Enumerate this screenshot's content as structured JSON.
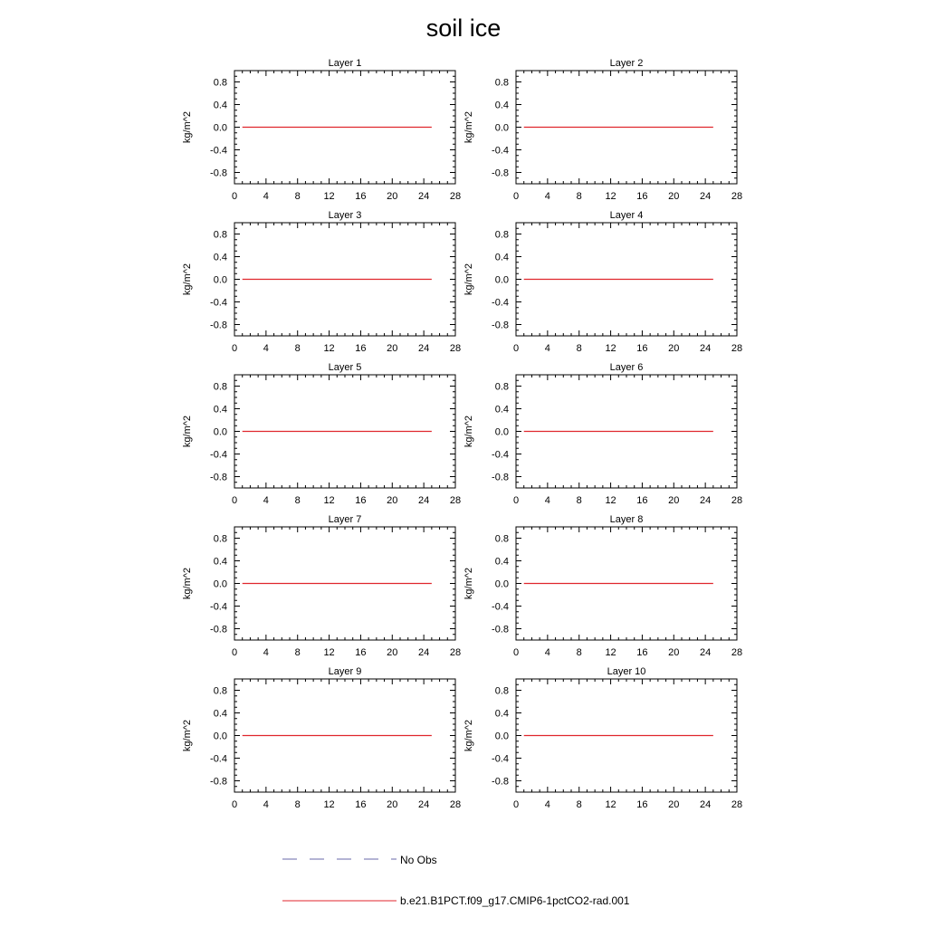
{
  "figure": {
    "title": "soil ice"
  },
  "chart_data": {
    "type": "line",
    "layout": "5x2 panel grid",
    "xlim": [
      0,
      28
    ],
    "ylim": [
      -1.0,
      1.0
    ],
    "x_ticks": [
      0,
      4,
      8,
      12,
      16,
      20,
      24,
      28
    ],
    "x_tick_labels": [
      "0",
      "4",
      "8",
      "12",
      "16",
      "20",
      "24",
      "28"
    ],
    "y_ticks": [
      0.8,
      0.4,
      0.0,
      -0.4,
      -0.8
    ],
    "y_tick_labels": [
      "0.8",
      "0.4",
      "0.0",
      "-0.4",
      "-0.8"
    ],
    "ylabel": "kg/m^2",
    "grid": false,
    "legend_position": "bottom-center",
    "legend": [
      {
        "name": "No Obs",
        "style": "dashed",
        "color": "#6a6aa8"
      },
      {
        "name": "b.e21.B1PCT.f09_g17.CMIP6-1pctCO2-rad.001",
        "style": "solid",
        "color": "#e0262d"
      }
    ],
    "panels": [
      {
        "title": "Layer 1",
        "series": [
          {
            "name": "b.e21.B1PCT.f09_g17.CMIP6-1pctCO2-rad.001",
            "x": [
              1,
              25
            ],
            "y": [
              0.0,
              0.0
            ]
          }
        ]
      },
      {
        "title": "Layer 2",
        "series": [
          {
            "name": "b.e21.B1PCT.f09_g17.CMIP6-1pctCO2-rad.001",
            "x": [
              1,
              25
            ],
            "y": [
              0.0,
              0.0
            ]
          }
        ]
      },
      {
        "title": "Layer 3",
        "series": [
          {
            "name": "b.e21.B1PCT.f09_g17.CMIP6-1pctCO2-rad.001",
            "x": [
              1,
              25
            ],
            "y": [
              0.0,
              0.0
            ]
          }
        ]
      },
      {
        "title": "Layer 4",
        "series": [
          {
            "name": "b.e21.B1PCT.f09_g17.CMIP6-1pctCO2-rad.001",
            "x": [
              1,
              25
            ],
            "y": [
              0.0,
              0.0
            ]
          }
        ]
      },
      {
        "title": "Layer 5",
        "series": [
          {
            "name": "b.e21.B1PCT.f09_g17.CMIP6-1pctCO2-rad.001",
            "x": [
              1,
              25
            ],
            "y": [
              0.0,
              0.0
            ]
          }
        ]
      },
      {
        "title": "Layer 6",
        "series": [
          {
            "name": "b.e21.B1PCT.f09_g17.CMIP6-1pctCO2-rad.001",
            "x": [
              1,
              25
            ],
            "y": [
              0.0,
              0.0
            ]
          }
        ]
      },
      {
        "title": "Layer 7",
        "series": [
          {
            "name": "b.e21.B1PCT.f09_g17.CMIP6-1pctCO2-rad.001",
            "x": [
              1,
              25
            ],
            "y": [
              0.0,
              0.0
            ]
          }
        ]
      },
      {
        "title": "Layer 8",
        "series": [
          {
            "name": "b.e21.B1PCT.f09_g17.CMIP6-1pctCO2-rad.001",
            "x": [
              1,
              25
            ],
            "y": [
              0.0,
              0.0
            ]
          }
        ]
      },
      {
        "title": "Layer 9",
        "series": [
          {
            "name": "b.e21.B1PCT.f09_g17.CMIP6-1pctCO2-rad.001",
            "x": [
              1,
              25
            ],
            "y": [
              0.0,
              0.0
            ]
          }
        ]
      },
      {
        "title": "Layer 10",
        "series": [
          {
            "name": "b.e21.B1PCT.f09_g17.CMIP6-1pctCO2-rad.001",
            "x": [
              1,
              25
            ],
            "y": [
              0.0,
              0.0
            ]
          }
        ]
      }
    ]
  }
}
